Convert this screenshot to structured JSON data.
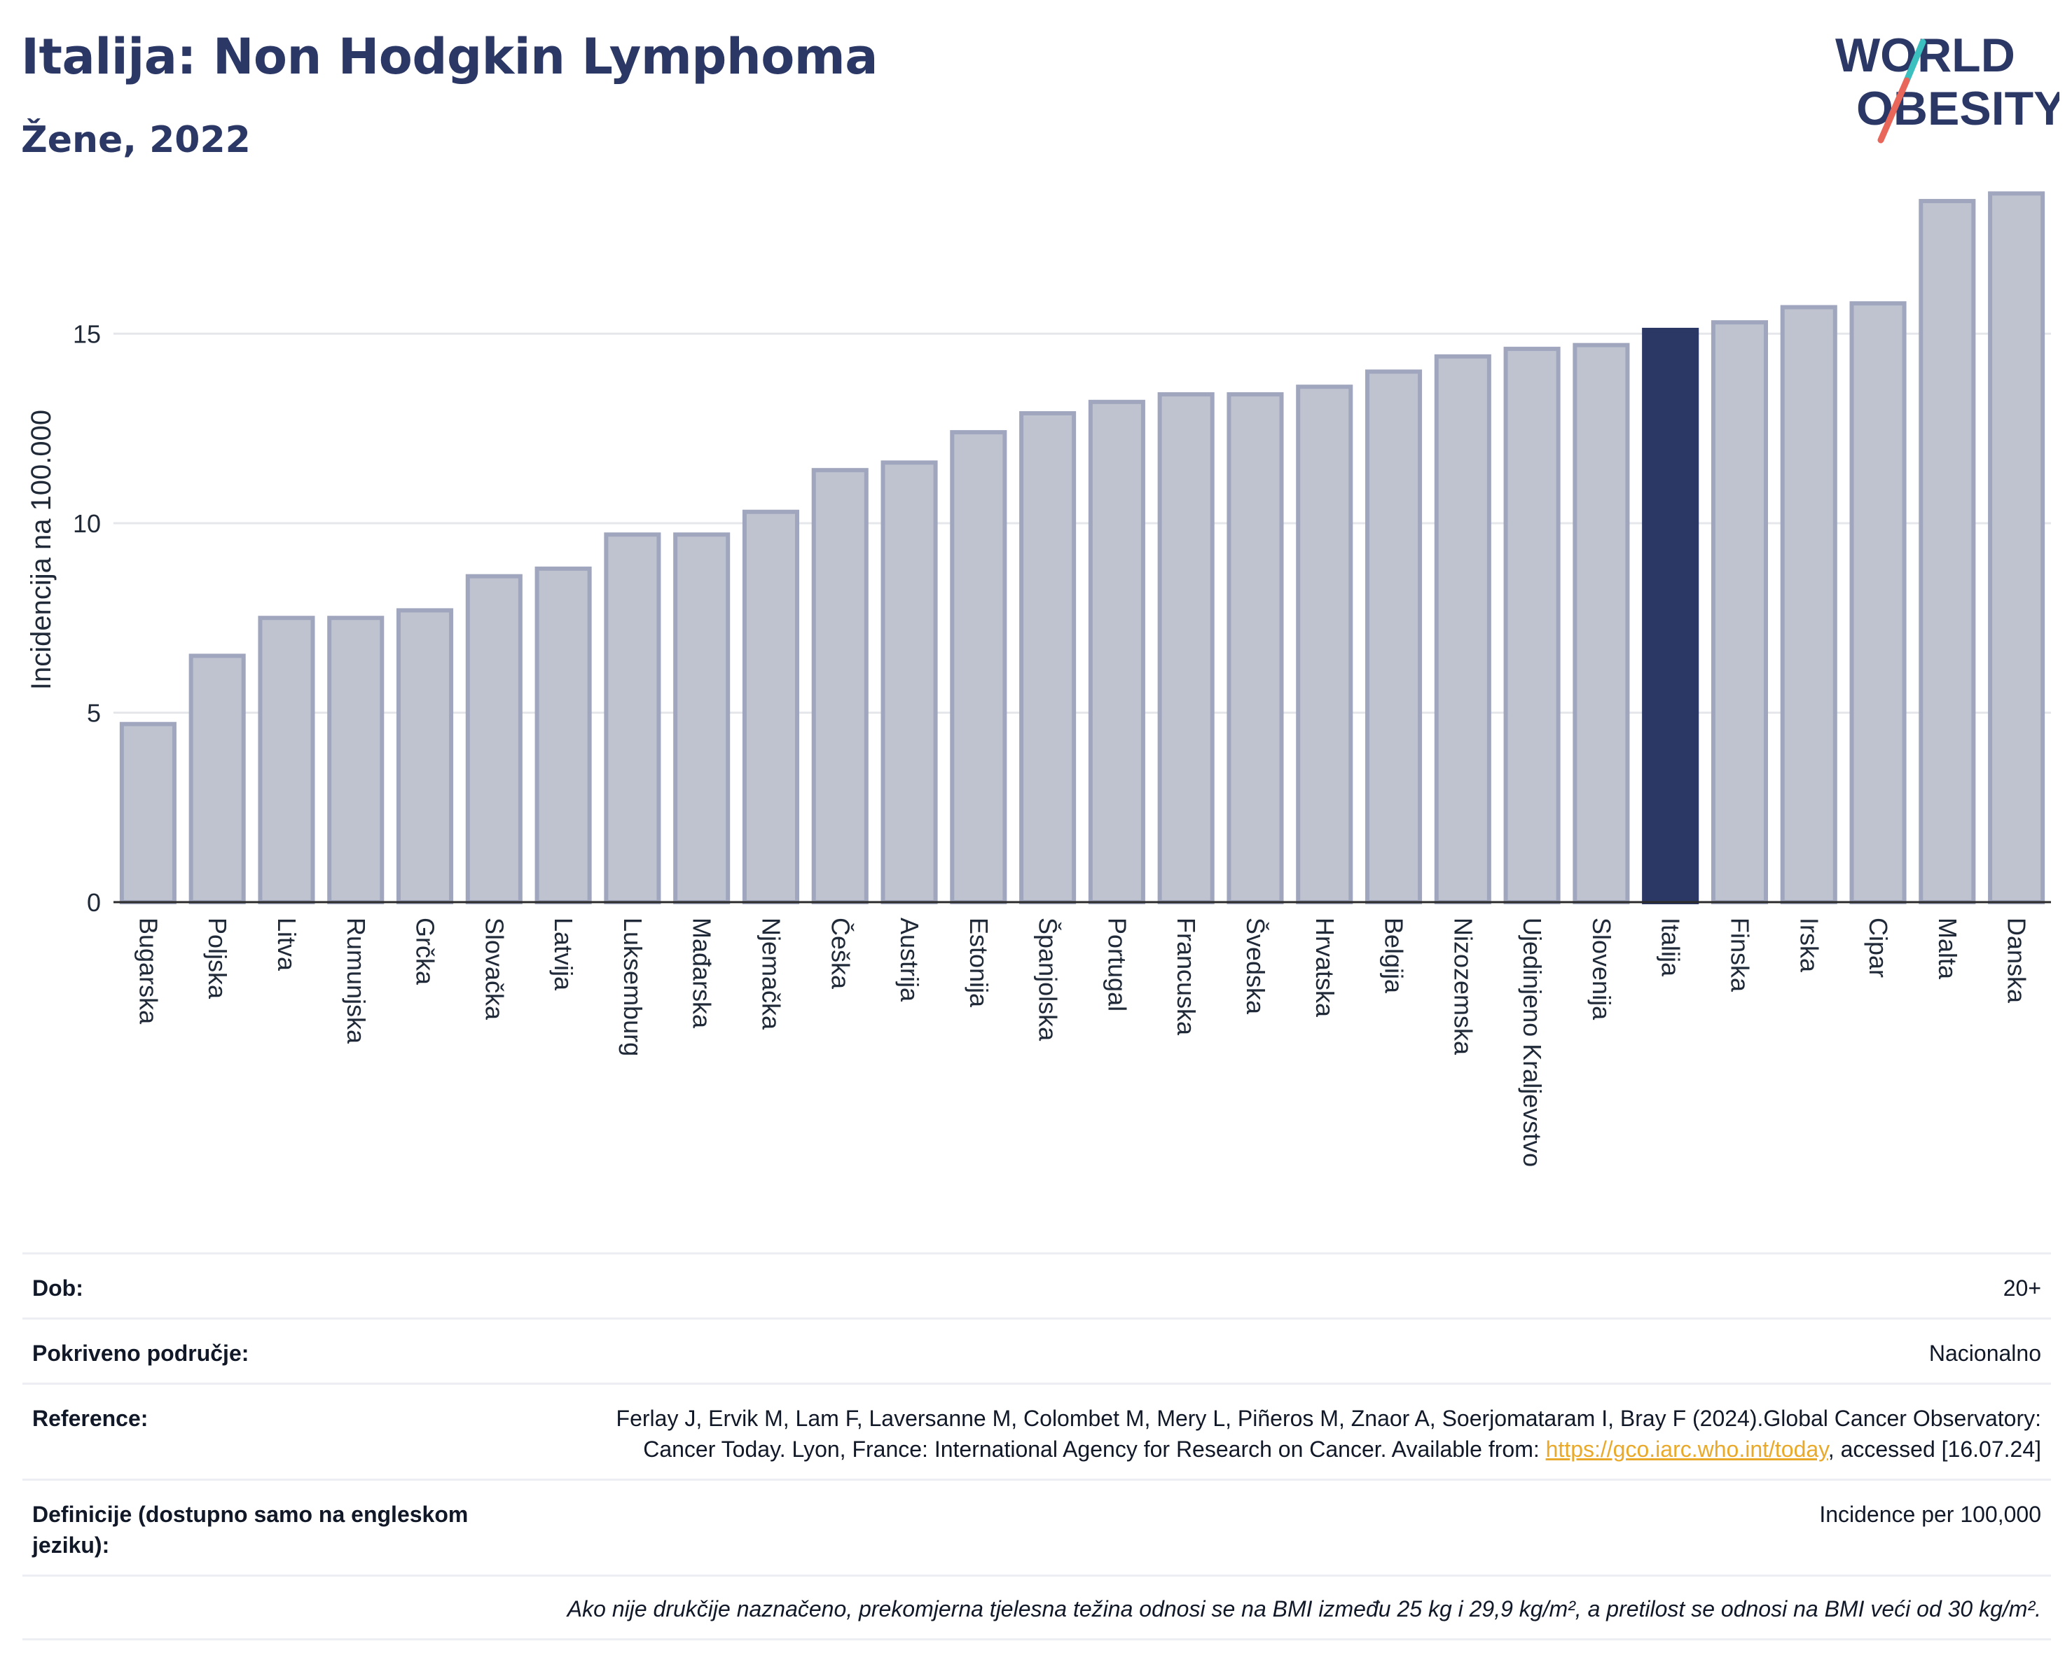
{
  "header": {
    "title": "Italija: Non Hodgkin Lymphoma",
    "subtitle": "Žene, 2022"
  },
  "logo": {
    "line1": "WORLD",
    "line2": "OBESITY",
    "colors": {
      "text": "#2b3764",
      "slash_teal": "#3bbfbf",
      "slash_red": "#e8675a"
    }
  },
  "chart_data": {
    "type": "bar",
    "ylabel": "Incidencija na 100.000",
    "ylim": [
      0,
      19
    ],
    "yticks": [
      0,
      5,
      10,
      15
    ],
    "grid": true,
    "highlight": "Italija",
    "colors": {
      "bar": "#bfc3d0",
      "bar_border": "#a0a6bd",
      "highlight": "#2b3764",
      "grid": "#e5e7eb"
    },
    "categories": [
      "Bugarska",
      "Poljska",
      "Litva",
      "Rumunjska",
      "Grčka",
      "Slovačka",
      "Latvija",
      "Luksemburg",
      "Mađarska",
      "Njemačka",
      "Češka",
      "Austrija",
      "Estonija",
      "Španjolska",
      "Portugal",
      "Francuska",
      "Švedska",
      "Hrvatska",
      "Belgija",
      "Nizozemska",
      "Ujedinjeno Kraljevstvo",
      "Slovenija",
      "Italija",
      "Finska",
      "Irska",
      "Cipar",
      "Malta",
      "Danska"
    ],
    "values": [
      4.7,
      6.5,
      7.5,
      7.5,
      7.7,
      8.6,
      8.8,
      9.7,
      9.7,
      10.3,
      11.4,
      11.6,
      12.4,
      12.9,
      13.2,
      13.4,
      13.4,
      13.6,
      14.0,
      14.4,
      14.6,
      14.7,
      15.1,
      15.3,
      15.7,
      15.8,
      18.5,
      18.7
    ]
  },
  "meta": {
    "rows": [
      {
        "label": "Dob:",
        "value": "20+"
      },
      {
        "label": "Pokriveno područje:",
        "value": "Nacionalno"
      }
    ],
    "reference": {
      "label": "Reference:",
      "text_before": "Ferlay J, Ervik M, Lam F, Laversanne M, Colombet M, Mery L, Piñeros M, Znaor A, Soerjomataram I, Bray F (2024).Global Cancer Observatory: Cancer Today. Lyon, France: International Agency for Research on Cancer. Available from: ",
      "link": "https://gco.iarc.who.int/today",
      "text_after": ", accessed [16.07.24]"
    },
    "definition": {
      "label": "Definicije (dostupno samo na engleskom jeziku):",
      "value": "Incidence per 100,000"
    },
    "note": "Ako nije drukčije naznačeno, prekomjerna tjelesna težina odnosi se na BMI između 25 kg i 29,9 kg/m², a pretilost se odnosi na BMI veći od 30 kg/m²."
  }
}
